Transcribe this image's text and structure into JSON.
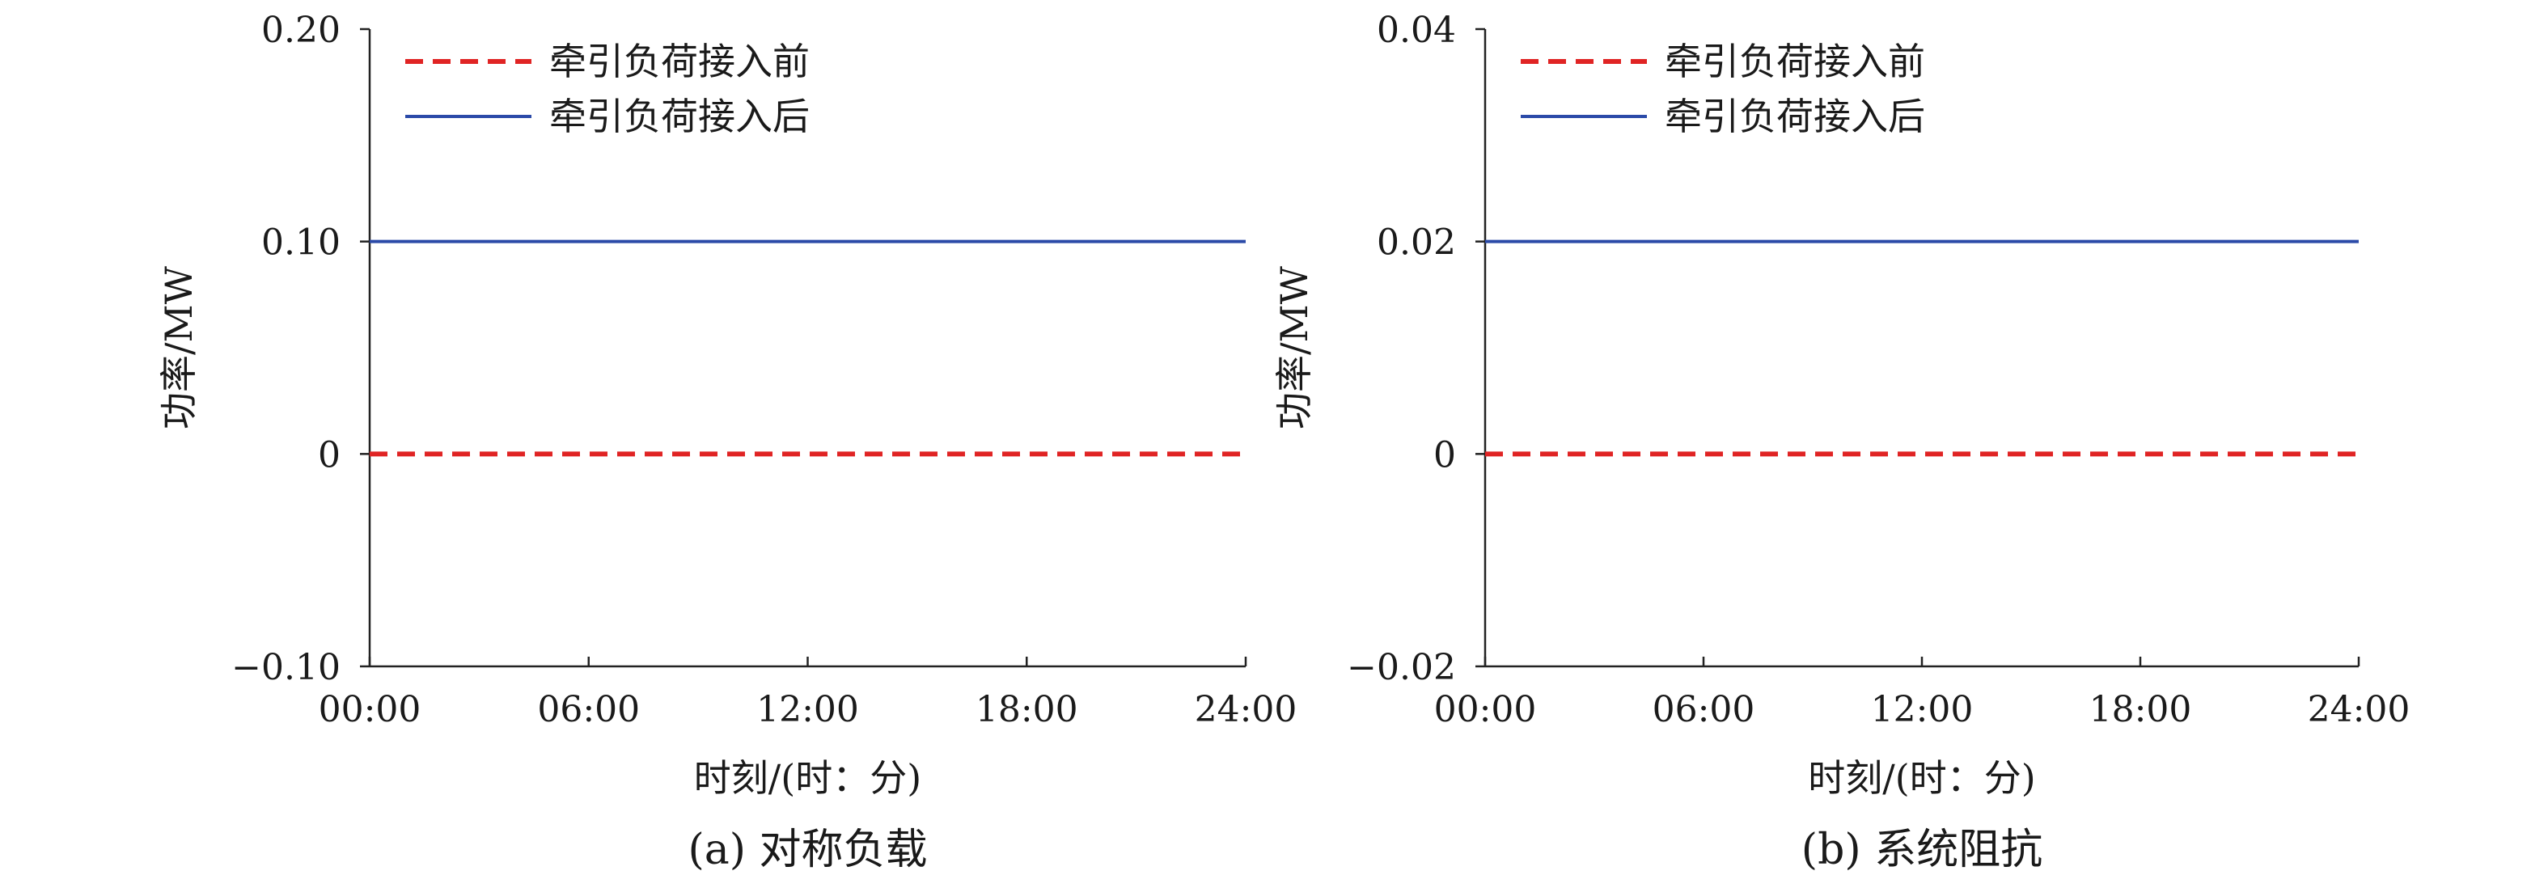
{
  "chart_data": [
    {
      "type": "line",
      "subtitle": "(a) 对称负载",
      "xlabel": "时刻/(时：分)",
      "ylabel": "功率/MW",
      "x_ticks": [
        "00:00",
        "06:00",
        "12:00",
        "18:00",
        "24:00"
      ],
      "y_ticks": [
        "0.20",
        "0.10",
        "0",
        "−0.10"
      ],
      "ylim": [
        -0.1,
        0.2
      ],
      "xlim_hours": [
        0,
        24
      ],
      "legend_position": "top-left",
      "series": [
        {
          "name": "牵引负荷接入前",
          "color": "#e02424",
          "style": "dashed",
          "x": [
            0,
            24
          ],
          "y": [
            0,
            0
          ]
        },
        {
          "name": "牵引负荷接入后",
          "color": "#2b4aa8",
          "style": "solid",
          "x": [
            0,
            24
          ],
          "y": [
            0.1,
            0.1
          ]
        }
      ]
    },
    {
      "type": "line",
      "subtitle": "(b) 系统阻抗",
      "xlabel": "时刻/(时：分)",
      "ylabel": "功率/MW",
      "x_ticks": [
        "00:00",
        "06:00",
        "12:00",
        "18:00",
        "24:00"
      ],
      "y_ticks": [
        "0.04",
        "0.02",
        "0",
        "−0.02"
      ],
      "ylim": [
        -0.02,
        0.04
      ],
      "xlim_hours": [
        0,
        24
      ],
      "legend_position": "top-left",
      "series": [
        {
          "name": "牵引负荷接入前",
          "color": "#e02424",
          "style": "dashed",
          "x": [
            0,
            24
          ],
          "y": [
            0,
            0
          ]
        },
        {
          "name": "牵引负荷接入后",
          "color": "#2b4aa8",
          "style": "solid",
          "x": [
            0,
            24
          ],
          "y": [
            0.02,
            0.02
          ]
        }
      ]
    }
  ]
}
